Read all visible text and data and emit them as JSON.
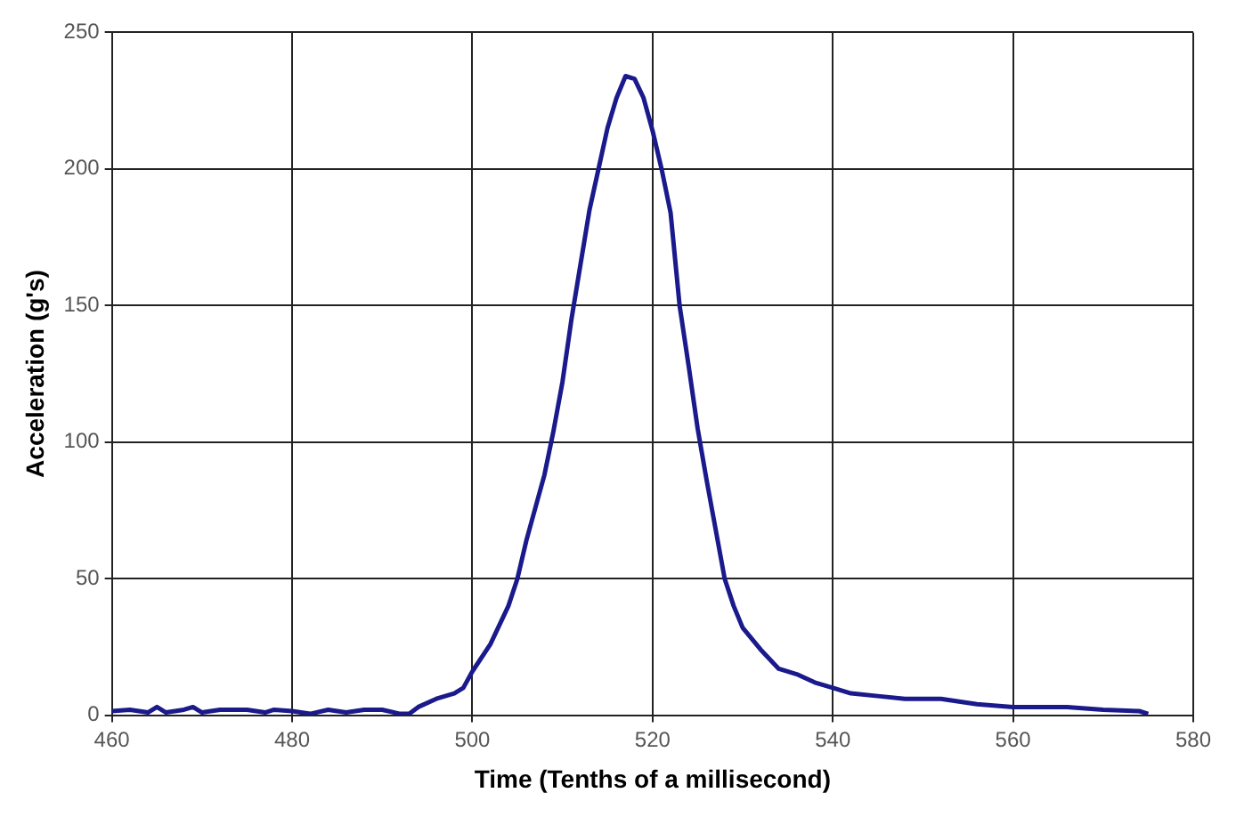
{
  "chart_data": {
    "type": "line",
    "xlabel": "Time (Tenths of a millisecond)",
    "ylabel": "Acceleration (g's)",
    "x": [
      460,
      462,
      464,
      465,
      466,
      468,
      469,
      470,
      472,
      475,
      477,
      478,
      480,
      482,
      484,
      486,
      488,
      490,
      492,
      493,
      494,
      496,
      498,
      499,
      500,
      502,
      504,
      505,
      506,
      508,
      509,
      510,
      511,
      512,
      513,
      514,
      515,
      516,
      517,
      518,
      519,
      520,
      521,
      522,
      523,
      524,
      525,
      526,
      527,
      528,
      529,
      530,
      532,
      534,
      536,
      538,
      540,
      542,
      545,
      548,
      552,
      554,
      556,
      560,
      564,
      566,
      570,
      574,
      575
    ],
    "series": [
      {
        "color": "#1a1a8c",
        "values": [
          1.5,
          2,
          1,
          3,
          1,
          2,
          3,
          1,
          2,
          2,
          1,
          2,
          1.5,
          0.5,
          2,
          1,
          2,
          2,
          0.5,
          0.5,
          3,
          6,
          8,
          10,
          16,
          26,
          40,
          50,
          64,
          88,
          104,
          122,
          145,
          165,
          185,
          200,
          215,
          226,
          234,
          233,
          226,
          214,
          200,
          184,
          150,
          128,
          105,
          86,
          68,
          50,
          40,
          32,
          24,
          17,
          15,
          12,
          10,
          8,
          7,
          6,
          6,
          5,
          4,
          3,
          3,
          3,
          2,
          1.5,
          0.5
        ]
      }
    ],
    "xlim": [
      460,
      580
    ],
    "xticks": [
      460,
      480,
      500,
      520,
      540,
      560,
      580
    ],
    "ylim": [
      0,
      250
    ],
    "yticks": [
      0,
      50,
      100,
      150,
      200,
      250
    ],
    "grid": true,
    "legend": false,
    "marker": "none",
    "line_style": "solid"
  }
}
